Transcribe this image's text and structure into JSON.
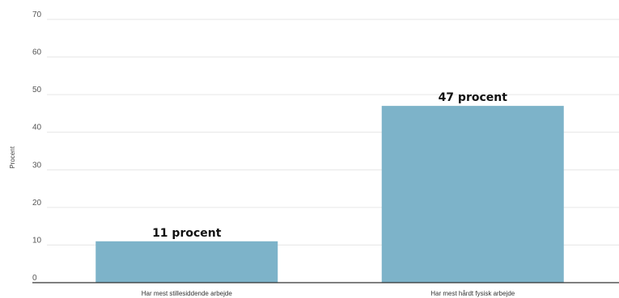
{
  "chart_data": {
    "type": "bar",
    "categories": [
      "Har mest stillesiddende arbejde",
      "Har mest hårdt fysisk arbejde"
    ],
    "values": [
      11,
      47
    ],
    "data_labels": [
      "11 procent",
      "47 procent"
    ],
    "ylabel": "Procent",
    "ylim": [
      0,
      70
    ],
    "yticks": [
      0,
      10,
      20,
      30,
      40,
      50,
      60,
      70
    ],
    "grid": true,
    "legend": "none",
    "bar_color": "#7db3c9"
  }
}
